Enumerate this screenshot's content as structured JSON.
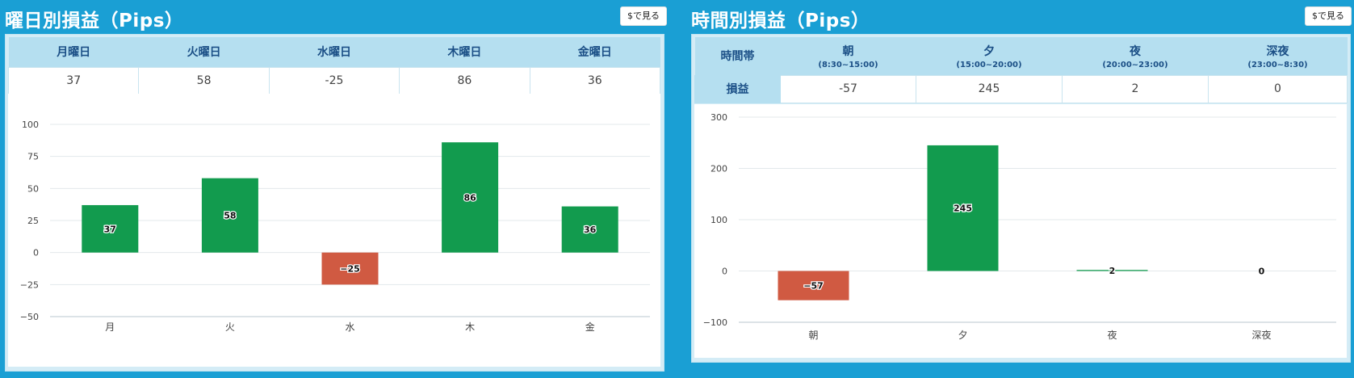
{
  "left_panel": {
    "title": "曜日別損益（Pips）",
    "usd_button": "$で見る",
    "headers": [
      "月曜日",
      "火曜日",
      "水曜日",
      "木曜日",
      "金曜日"
    ],
    "values": [
      "37",
      "58",
      "-25",
      "86",
      "36"
    ]
  },
  "right_panel": {
    "title": "時間別損益（Pips）",
    "usd_button": "$で見る",
    "row_header_label": "時間帯",
    "headers": [
      {
        "label": "朝",
        "sub": "(8:30~15:00)"
      },
      {
        "label": "夕",
        "sub": "(15:00~20:00)"
      },
      {
        "label": "夜",
        "sub": "(20:00~23:00)"
      },
      {
        "label": "深夜",
        "sub": "(23:00~8:30)"
      }
    ],
    "row_label": "損益",
    "values": [
      "-57",
      "245",
      "2",
      "0"
    ]
  },
  "colors": {
    "positive": "#129b4e",
    "negative": "#d05a42",
    "background": "#1a9fd4"
  },
  "chart_data": [
    {
      "type": "bar",
      "categories": [
        "月",
        "火",
        "水",
        "木",
        "金"
      ],
      "values": [
        37,
        58,
        -25,
        86,
        36
      ],
      "ylim": [
        -50,
        100
      ],
      "yticks": [
        100,
        75,
        50,
        25,
        0,
        -25,
        -50
      ],
      "ytick_labels": [
        "100",
        "75",
        "50",
        "25",
        "0",
        "−25",
        "−50"
      ],
      "grid": true
    },
    {
      "type": "bar",
      "categories": [
        "朝",
        "夕",
        "夜",
        "深夜"
      ],
      "values": [
        -57,
        245,
        2,
        0
      ],
      "ylim": [
        -100,
        300
      ],
      "yticks": [
        300,
        200,
        100,
        0,
        -100
      ],
      "ytick_labels": [
        "300",
        "200",
        "100",
        "0",
        "−100"
      ],
      "grid": true
    }
  ]
}
